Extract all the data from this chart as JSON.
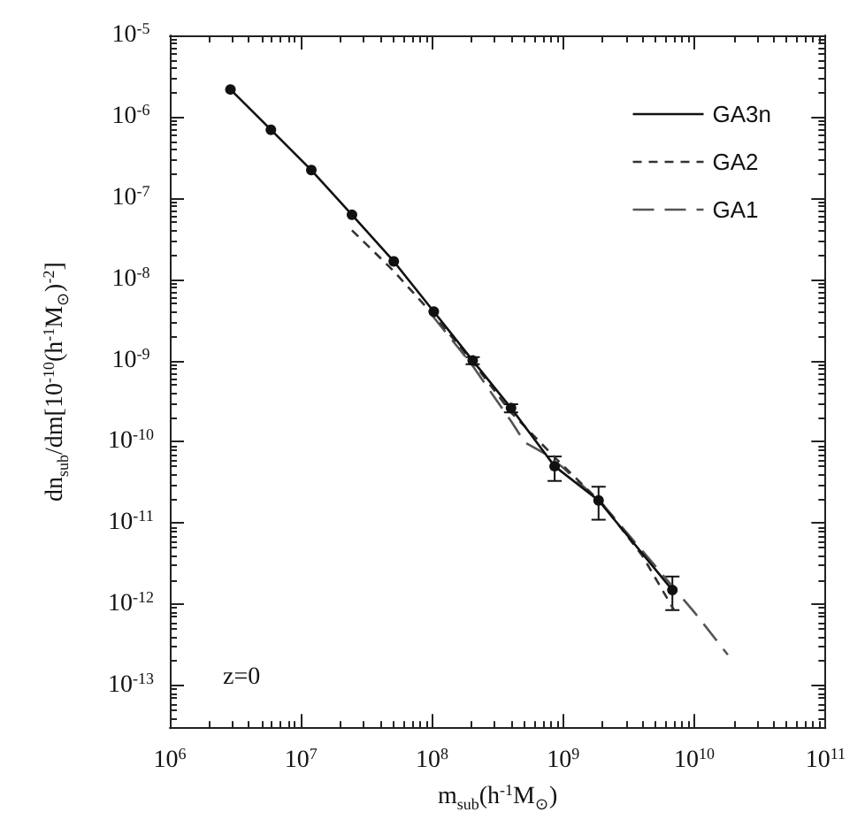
{
  "chart_data": {
    "type": "line",
    "xlabel": "m$_{sub}$(h$^{-1}$M$_{⊙}$)",
    "ylabel": "dn$_{sub}$/dm[10$^{-10}$(h$^{-1}$M$_{⊙}$)$^{-2}$]",
    "log": "xy",
    "grid": false,
    "legend": "top right",
    "xlim": [
      1000000.0,
      100000000000.0
    ],
    "xticks": [
      {
        "value": 1000000.0,
        "label": "10$^{6}$"
      },
      {
        "value": 10000000.0,
        "label": "10$^{7}$"
      },
      {
        "value": 100000000.0,
        "label": "10$^{8}$"
      },
      {
        "value": 1000000000.0,
        "label": "10$^{9}$"
      },
      {
        "value": 10000000000.0,
        "label": "10$^{10}$"
      },
      {
        "value": 100000000000.0,
        "label": "10$^{11}$"
      }
    ],
    "ylim": [
      3e-14,
      1e-05
    ],
    "yticks": [
      {
        "value": 1e-13,
        "label": "10$^{-13}$"
      },
      {
        "value": 1e-12,
        "label": "10$^{-12}$"
      },
      {
        "value": 1e-11,
        "label": "10$^{-11}$"
      },
      {
        "value": 1e-10,
        "label": "10$^{-10}$"
      },
      {
        "value": 1e-09,
        "label": "10$^{-9}$"
      },
      {
        "value": 1e-08,
        "label": "10$^{-8}$"
      },
      {
        "value": 1e-07,
        "label": "10$^{-7}$"
      },
      {
        "value": 1e-06,
        "label": "10$^{-6}$"
      },
      {
        "value": 1e-05,
        "label": "10$^{-5}$"
      }
    ],
    "annotations": [
      "z=0"
    ],
    "series": [
      {
        "name": "GA3n",
        "color": "#111111",
        "line_style": "solid",
        "marker": "circle",
        "x": [
          2900000.0,
          5900000.0,
          12000000.0,
          24500000.0,
          51000000.0,
          103000000.0,
          204000000.0,
          400000000.0,
          860000000.0,
          1860000000.0,
          6800000000.0
        ],
        "values": [
          2.16e-06,
          6.9e-07,
          2.2e-07,
          6.2e-08,
          1.66e-08,
          4e-09,
          1e-09,
          2.6e-10,
          5e-11,
          1.9e-11,
          1.5e-12
        ],
        "errors": [
          null,
          null,
          null,
          null,
          null,
          null,
          [
            9e-10,
            1.1e-09
          ],
          [
            2.3e-10,
            2.9e-10
          ],
          [
            3.3e-11,
            6.6e-11
          ],
          [
            1.1e-11,
            2.8e-11
          ],
          [
            8.5e-13,
            2.2e-12
          ]
        ]
      },
      {
        "name": "GA2",
        "color": "#333333",
        "line_style": "dashed",
        "marker": "none",
        "x": [
          24500000.0,
          50000000.0,
          100000000.0,
          200000000.0,
          400000000.0,
          900000000.0,
          2000000000.0,
          4000000000.0,
          7000000000.0
        ],
        "values": [
          4e-08,
          1.3e-08,
          3.8e-09,
          1e-09,
          2.3e-10,
          6e-11,
          1.7e-11,
          4e-12,
          8.5e-13
        ]
      },
      {
        "name": "GA1",
        "color": "#555555",
        "line_style": "long-dashed",
        "marker": "none",
        "x": [
          100000000.0,
          200000000.0,
          300000000.0,
          400000000.0,
          510000000.0,
          700000000.0,
          1000000000.0,
          2000000000.0,
          5000000000.0,
          10000000000.0,
          18000000000.0
        ],
        "values": [
          3.6e-09,
          9e-10,
          3.5e-10,
          1.8e-10,
          9.8e-11,
          7.4e-11,
          4.8e-11,
          1.7e-11,
          3e-12,
          8e-13,
          2.4e-13
        ]
      }
    ]
  }
}
